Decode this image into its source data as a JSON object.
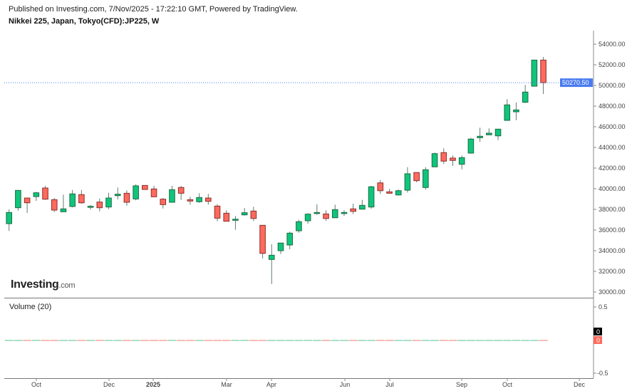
{
  "header": {
    "published": "Published on Investing.com, 7/Nov/2025 - 17:22:10 GMT, Powered by TradingView.",
    "symbol": "Nikkei 225, Japan, Tokyo(CFD):JP225, W"
  },
  "logo": {
    "brand": "Investing",
    "suffix": ".com"
  },
  "volume": {
    "label": "Volume (20)",
    "value_up": "0",
    "value_down": "0",
    "ticks": [
      "0.5",
      "-0.5"
    ]
  },
  "colors": {
    "up": "#0fc57b",
    "up_border": "#1f6b45",
    "down": "#ff6a5c",
    "down_border": "#8a2f2f",
    "last_price_bg": "#4a7cf0",
    "wick": "#5f7f6f"
  },
  "chart_data": {
    "type": "candlestick",
    "interval": "W",
    "ylim": [
      30000,
      54000
    ],
    "y_ticks": [
      "54000.00",
      "52000.00",
      "50000.00",
      "48000.00",
      "46000.00",
      "44000.00",
      "42000.00",
      "40000.00",
      "38000.00",
      "36000.00",
      "34000.00",
      "32000.00",
      "30000.00"
    ],
    "last_price": "50270.50",
    "x_ticks": [
      "Oct",
      "Dec",
      "2025",
      "Mar",
      "Apr",
      "Jun",
      "Jul",
      "Sep",
      "Oct",
      "Dec"
    ],
    "ohlc": [
      [
        36620,
        38000,
        35910,
        37700
      ],
      [
        38160,
        39860,
        37880,
        39840
      ],
      [
        39100,
        39110,
        37650,
        38640
      ],
      [
        39240,
        39700,
        38830,
        39610
      ],
      [
        40070,
        40280,
        38920,
        38990
      ],
      [
        38940,
        39100,
        37740,
        37930
      ],
      [
        37770,
        39430,
        37770,
        38050
      ],
      [
        38280,
        39880,
        38190,
        39500
      ],
      [
        39430,
        39880,
        38550,
        38640
      ],
      [
        38280,
        38430,
        37980,
        38300
      ],
      [
        38710,
        39050,
        37810,
        38160
      ],
      [
        38230,
        39610,
        38020,
        39100
      ],
      [
        39330,
        40120,
        38970,
        39470
      ],
      [
        39560,
        39840,
        38360,
        38690
      ],
      [
        39010,
        40430,
        38880,
        40280
      ],
      [
        40320,
        40350,
        39900,
        39930
      ],
      [
        39980,
        40280,
        39200,
        39220
      ],
      [
        38990,
        39100,
        38090,
        38460
      ],
      [
        38690,
        40280,
        38680,
        39910
      ],
      [
        40120,
        40280,
        38920,
        39560
      ],
      [
        38940,
        39220,
        38460,
        38810
      ],
      [
        38740,
        39560,
        38640,
        39150
      ],
      [
        39100,
        39500,
        38460,
        38780
      ],
      [
        38320,
        38500,
        36850,
        37150
      ],
      [
        37630,
        37910,
        36840,
        36850
      ],
      [
        36940,
        37360,
        36020,
        37050
      ],
      [
        37470,
        38140,
        37400,
        37680
      ],
      [
        37840,
        38250,
        36880,
        37120
      ],
      [
        36460,
        36470,
        33260,
        33740
      ],
      [
        33150,
        34620,
        30780,
        33560
      ],
      [
        34000,
        34750,
        33680,
        34740
      ],
      [
        34550,
        35840,
        34140,
        35700
      ],
      [
        35930,
        36990,
        35740,
        36810
      ],
      [
        36900,
        37630,
        36620,
        37540
      ],
      [
        37630,
        38500,
        37470,
        37700
      ],
      [
        37560,
        37910,
        36900,
        37120
      ],
      [
        37190,
        38460,
        37190,
        37980
      ],
      [
        37610,
        37930,
        37360,
        37700
      ],
      [
        38050,
        38550,
        37540,
        37810
      ],
      [
        38020,
        38920,
        38010,
        38390
      ],
      [
        38230,
        40280,
        38070,
        40190
      ],
      [
        40570,
        40850,
        39500,
        39810
      ],
      [
        39700,
        39980,
        39560,
        39560
      ],
      [
        39400,
        39930,
        39330,
        39810
      ],
      [
        39860,
        42090,
        39630,
        41450
      ],
      [
        41570,
        41580,
        40620,
        40780
      ],
      [
        40120,
        42090,
        39910,
        41840
      ],
      [
        42120,
        43500,
        42100,
        43400
      ],
      [
        43500,
        43910,
        42390,
        42670
      ],
      [
        42970,
        43220,
        42210,
        42740
      ],
      [
        42370,
        43220,
        41880,
        43010
      ],
      [
        43450,
        44920,
        43400,
        44810
      ],
      [
        44940,
        45910,
        44530,
        45080
      ],
      [
        45220,
        45840,
        45210,
        45380
      ],
      [
        45120,
        45780,
        44710,
        45770
      ],
      [
        46620,
        48670,
        46610,
        48120
      ],
      [
        47450,
        48340,
        46640,
        47630
      ],
      [
        48370,
        50050,
        48300,
        49360
      ],
      [
        49930,
        52470,
        49880,
        52460
      ],
      [
        52460,
        52760,
        49170,
        50270.5
      ]
    ]
  }
}
